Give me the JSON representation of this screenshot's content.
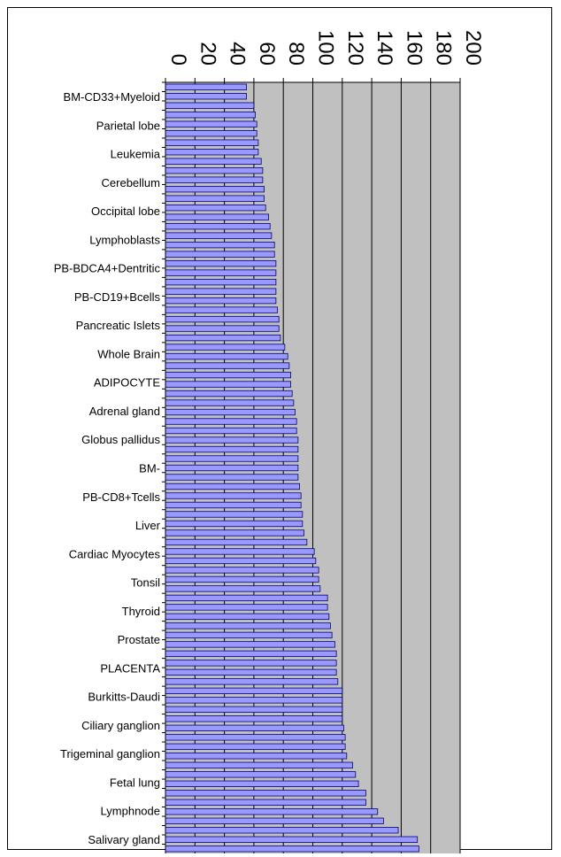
{
  "chart_data": {
    "type": "bar",
    "orientation": "horizontal",
    "title": "",
    "xlabel": "",
    "ylabel": "",
    "xlim": [
      0,
      200
    ],
    "ticks": [
      "0",
      "20",
      "40",
      "60",
      "80",
      "100",
      "120",
      "140",
      "160",
      "180",
      "200"
    ],
    "tick_label_rotation": "90deg clockwise, axis at top",
    "grid": "vertical gridlines",
    "legend": "none",
    "colors": {
      "bar_fill": "#9999ff",
      "bar_stroke": "#000080",
      "plot_bg": "#c0c0c0",
      "gridline": "#000000"
    },
    "labeled_categories": [
      "BM-CD33+Myeloid",
      "Parietal lobe",
      "Leukemia",
      "Cerebellum",
      "Occipital lobe",
      "Lymphoblasts",
      "PB-BDCA4+Dentritic",
      "PB-CD19+Bcells",
      "Pancreatic Islets",
      "Whole Brain",
      "ADIPOCYTE",
      "Adrenal gland",
      "Globus pallidus",
      "BM-",
      "PB-CD8+Tcells",
      "Liver",
      "Cardiac Myocytes",
      "Tonsil",
      "Thyroid",
      "Prostate",
      "PLACENTA",
      "Burkitts-Daudi",
      "Ciliary ganglion",
      "Trigeminal ganglion",
      "Fetal lung",
      "Lymphnode",
      "Salivary gland"
    ],
    "values": [
      55,
      55,
      60,
      61,
      62,
      62,
      63,
      63,
      65,
      66,
      66,
      67,
      67,
      68,
      70,
      71,
      72,
      74,
      74,
      75,
      75,
      75,
      75,
      75,
      76,
      77,
      77,
      78,
      81,
      83,
      84,
      85,
      85,
      86,
      87,
      88,
      89,
      89,
      90,
      90,
      90,
      90,
      90,
      91,
      92,
      92,
      93,
      93,
      94,
      96,
      101,
      102,
      104,
      104,
      105,
      110,
      110,
      111,
      112,
      113,
      115,
      116,
      116,
      116,
      117,
      120,
      120,
      120,
      120,
      121,
      122,
      122,
      123,
      127,
      129,
      131,
      136,
      136,
      144,
      148,
      158,
      171,
      172
    ]
  }
}
